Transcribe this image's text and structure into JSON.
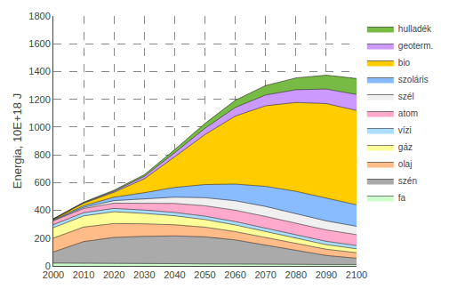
{
  "chart_data": {
    "type": "area",
    "stacked": true,
    "ylabel": "Energia, 10E+18 J",
    "x": [
      2000,
      2010,
      2020,
      2030,
      2040,
      2050,
      2060,
      2070,
      2080,
      2090,
      2100
    ],
    "series": [
      {
        "name": "fa",
        "color": "#ccffcc",
        "values": [
          20,
          20,
          20,
          18,
          16,
          14,
          12,
          10,
          10,
          10,
          10
        ]
      },
      {
        "name": "szén",
        "color": "#aaaaaa",
        "values": [
          80,
          155,
          185,
          195,
          200,
          195,
          175,
          140,
          100,
          65,
          45
        ]
      },
      {
        "name": "olaj",
        "color": "#ffbb88",
        "values": [
          100,
          105,
          100,
          90,
          80,
          70,
          60,
          55,
          50,
          45,
          40
        ]
      },
      {
        "name": "gáz",
        "color": "#ffff99",
        "values": [
          75,
          80,
          85,
          75,
          65,
          55,
          48,
          42,
          38,
          33,
          28
        ]
      },
      {
        "name": "vízi",
        "color": "#aaddff",
        "values": [
          22,
          23,
          24,
          24,
          24,
          24,
          24,
          24,
          24,
          24,
          24
        ]
      },
      {
        "name": "atom",
        "color": "#ffaacc",
        "values": [
          28,
          30,
          38,
          50,
          65,
          75,
          82,
          85,
          85,
          82,
          78
        ]
      },
      {
        "name": "szél",
        "color": "#f0f0f0",
        "values": [
          3,
          8,
          18,
          30,
          45,
          58,
          68,
          72,
          70,
          65,
          60
        ]
      },
      {
        "name": "szoláris",
        "color": "#88bbff",
        "values": [
          4,
          12,
          25,
          45,
          70,
          95,
          120,
          145,
          160,
          165,
          155
        ]
      },
      {
        "name": "bio",
        "color": "#ffcc00",
        "values": [
          4,
          18,
          35,
          100,
          220,
          360,
          490,
          580,
          640,
          680,
          680
        ]
      },
      {
        "name": "geoterm.",
        "color": "#cc99ff",
        "values": [
          2,
          4,
          8,
          18,
          30,
          45,
          62,
          78,
          92,
          105,
          115
        ]
      },
      {
        "name": "hulladék",
        "color": "#77bb44",
        "values": [
          2,
          4,
          7,
          12,
          22,
          35,
          52,
          68,
          85,
          100,
          115
        ]
      }
    ],
    "xlim": [
      2000,
      2100
    ],
    "xticks": [
      2000,
      2010,
      2020,
      2030,
      2040,
      2050,
      2060,
      2070,
      2080,
      2090,
      2100
    ],
    "ylim": [
      0,
      1800
    ],
    "yticks": [
      0,
      200,
      400,
      600,
      800,
      1000,
      1200,
      1400,
      1600,
      1800
    ],
    "grid": true,
    "legend": "right"
  }
}
